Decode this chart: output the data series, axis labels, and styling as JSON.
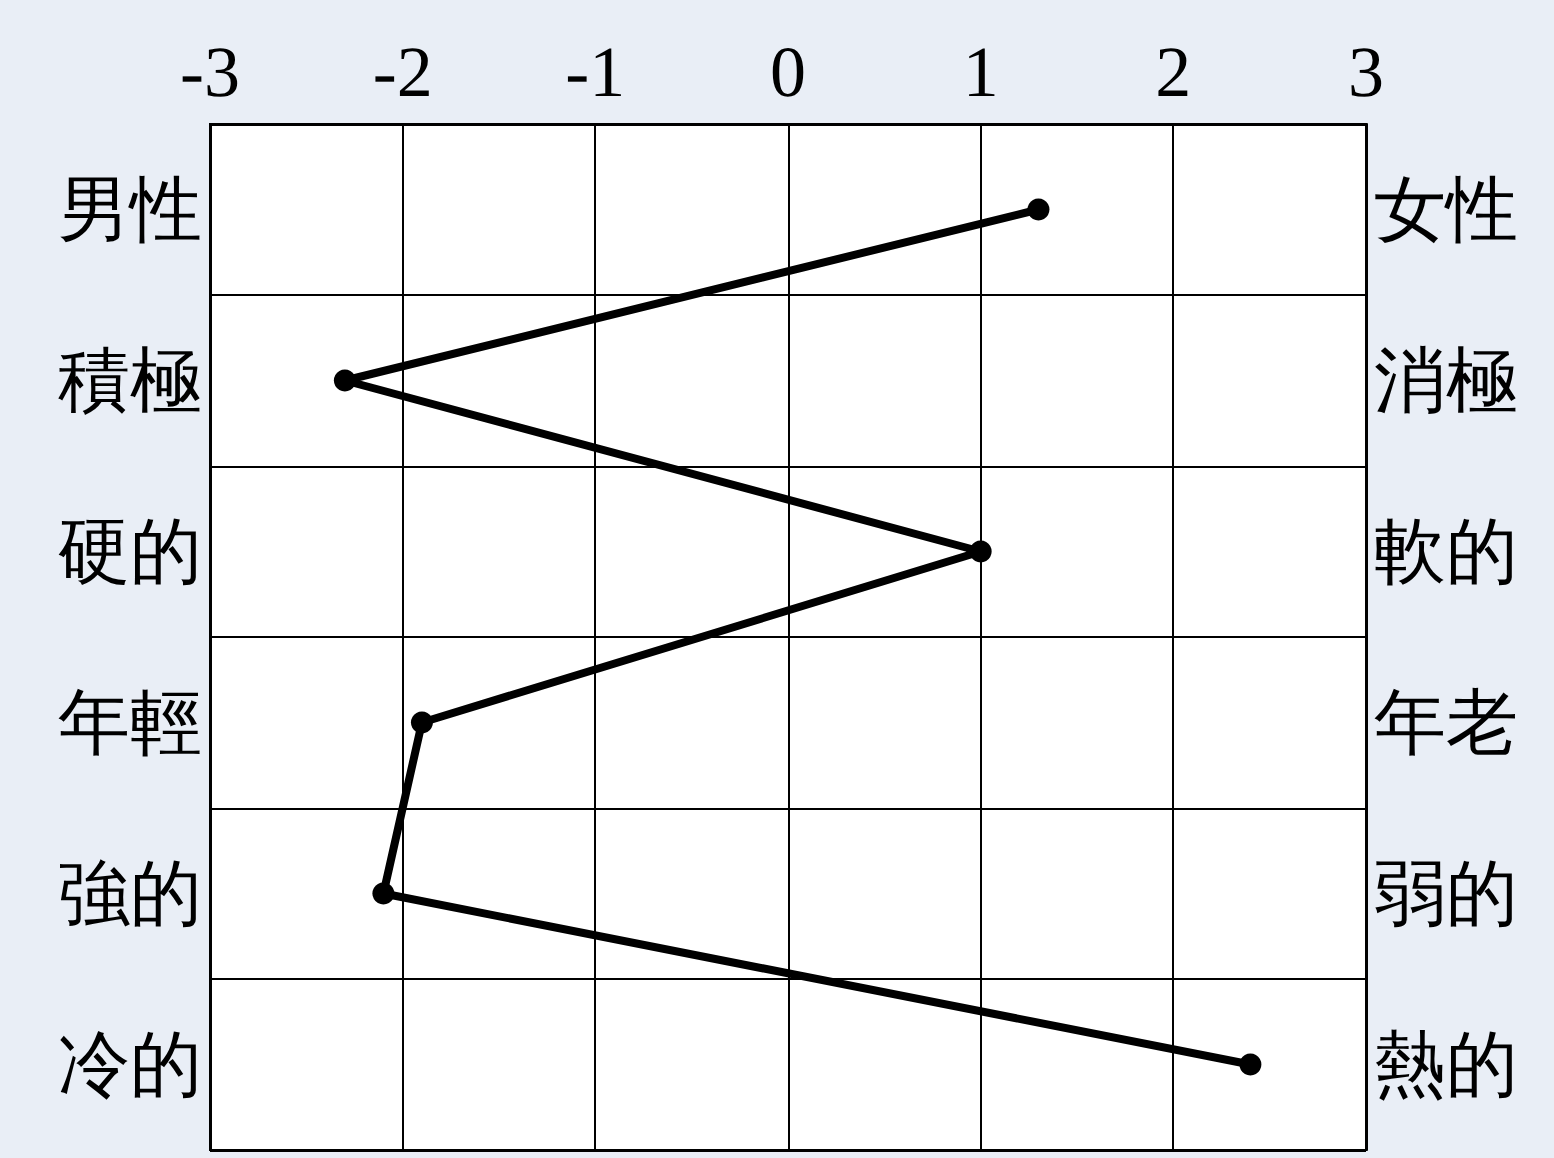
{
  "chart_data": {
    "type": "line",
    "orientation": "horizontal",
    "categories": [
      "男性",
      "積極",
      "硬的",
      "年輕",
      "強的",
      "冷的"
    ],
    "y2_categories": [
      "女性",
      "消極",
      "軟的",
      "年老",
      "弱的",
      "熱的"
    ],
    "series": [
      {
        "color": "#000000",
        "values": [
          1.3,
          -2.3,
          1.0,
          -1.9,
          -2.1,
          2.4
        ]
      }
    ],
    "xlim": [
      -3,
      3
    ],
    "xticks": [
      -3,
      -2,
      -1,
      0,
      1,
      2,
      3
    ],
    "grid": true,
    "marker": "circle",
    "line_style": "solid"
  }
}
